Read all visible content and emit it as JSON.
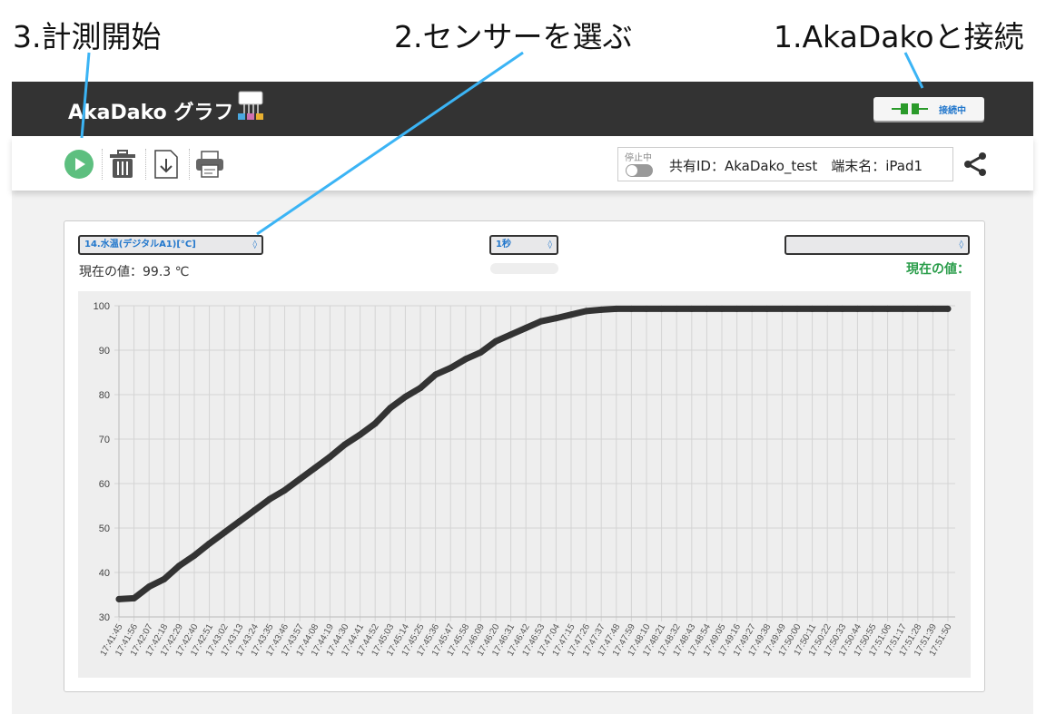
{
  "annotations": {
    "step3": "3.計測開始",
    "step2": "2.センサーを選ぶ",
    "step1": "1.AkaDakoと接続",
    "line_color": "#3bb4f5"
  },
  "header": {
    "title": "AkaDako グラフ",
    "connect_label": "接続中",
    "connect_icon": "plug-icon",
    "bg": "#333333"
  },
  "toolbar": {
    "icons": [
      "play-icon",
      "trash-icon",
      "download-icon",
      "print-icon"
    ],
    "play_color": "#5dbf7f",
    "status_label": "停止中",
    "toggle_on": false,
    "share_text": "共有ID：AkaDako_test　端末名：iPad1",
    "share_icon": "share-icon"
  },
  "panel": {
    "sensor_select": "14.水温(デジタルA1)[°C]",
    "interval_select": "1秒",
    "sensor2_select": "",
    "current_value": "現在の値：99.3 ℃",
    "current_value2": "現在の値：",
    "value2_color": "#2a9d4a"
  },
  "chart_data": {
    "type": "line",
    "ylim": [
      30,
      100
    ],
    "yticks": [
      30,
      40,
      50,
      60,
      70,
      80,
      90,
      100
    ],
    "grid": true,
    "line_color": "#333333",
    "x": [
      "17:41:45",
      "17:41:56",
      "17:42:07",
      "17:42:18",
      "17:42:29",
      "17:42:40",
      "17:42:51",
      "17:43:02",
      "17:43:13",
      "17:43:24",
      "17:43:35",
      "17:43:46",
      "17:43:57",
      "17:44:08",
      "17:44:19",
      "17:44:30",
      "17:44:41",
      "17:44:52",
      "17:45:03",
      "17:45:14",
      "17:45:25",
      "17:45:36",
      "17:45:47",
      "17:45:58",
      "17:46:09",
      "17:46:20",
      "17:46:31",
      "17:46:42",
      "17:46:53",
      "17:47:04",
      "17:47:15",
      "17:47:26",
      "17:47:37",
      "17:47:48",
      "17:47:59",
      "17:48:10",
      "17:48:21",
      "17:48:32",
      "17:48:43",
      "17:48:54",
      "17:49:05",
      "17:49:16",
      "17:49:27",
      "17:49:38",
      "17:49:49",
      "17:50:00",
      "17:50:11",
      "17:50:22",
      "17:50:33",
      "17:50:44",
      "17:50:55",
      "17:51:06",
      "17:51:17",
      "17:51:28",
      "17:51:39",
      "17:51:50"
    ],
    "values": [
      34.0,
      34.2,
      36.8,
      38.5,
      41.5,
      43.8,
      46.5,
      49.0,
      51.5,
      54.0,
      56.5,
      58.5,
      61.0,
      63.5,
      66.0,
      68.8,
      71.0,
      73.5,
      77.0,
      79.5,
      81.5,
      84.5,
      86.0,
      88.0,
      89.5,
      92.0,
      93.5,
      95.0,
      96.5,
      97.2,
      98.0,
      98.8,
      99.1,
      99.3,
      99.3,
      99.3,
      99.3,
      99.3,
      99.3,
      99.3,
      99.3,
      99.3,
      99.3,
      99.3,
      99.3,
      99.3,
      99.3,
      99.3,
      99.3,
      99.3,
      99.3,
      99.3,
      99.3,
      99.3,
      99.3,
      99.3
    ]
  }
}
